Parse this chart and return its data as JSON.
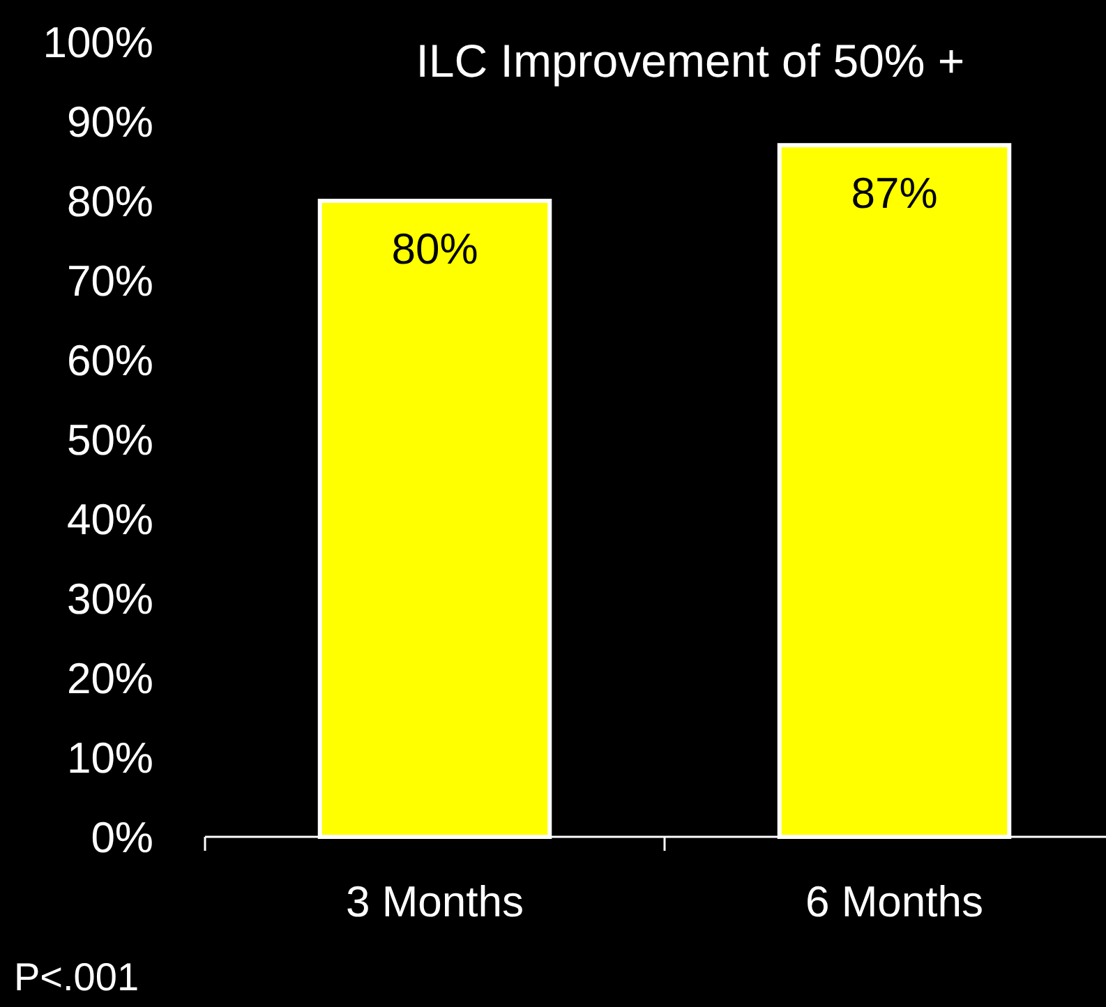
{
  "chart_data": {
    "type": "bar",
    "title": "ILC Improvement of 50% +",
    "categories": [
      "3 Months",
      "6 Months"
    ],
    "values": [
      80,
      87
    ],
    "value_labels": [
      "80%",
      "87%"
    ],
    "color": "#ffff00",
    "ylim": [
      0,
      100
    ],
    "yticks": [
      {
        "value": 0,
        "label": "0%"
      },
      {
        "value": 10,
        "label": "10%"
      },
      {
        "value": 20,
        "label": "20%"
      },
      {
        "value": 30,
        "label": "30%"
      },
      {
        "value": 40,
        "label": "40%"
      },
      {
        "value": 50,
        "label": "50%"
      },
      {
        "value": 60,
        "label": "60%"
      },
      {
        "value": 70,
        "label": "70%"
      },
      {
        "value": 80,
        "label": "80%"
      },
      {
        "value": 90,
        "label": "90%"
      },
      {
        "value": 100,
        "label": "100%"
      }
    ],
    "annotations": [
      "P<.001"
    ]
  }
}
